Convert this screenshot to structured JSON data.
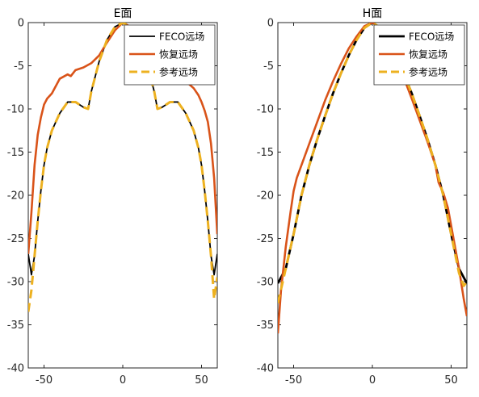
{
  "colors": {
    "feco": "#000000",
    "recovered": "#D95319",
    "reference": "#EDB120",
    "axis": "#262626"
  },
  "chart_data": [
    {
      "type": "line",
      "title": "E面",
      "xlabel": "",
      "ylabel": "",
      "xlim": [
        -60,
        60
      ],
      "ylim": [
        -40,
        0
      ],
      "xticks": [
        -50,
        0,
        50
      ],
      "yticks": [
        0,
        -5,
        -10,
        -15,
        -20,
        -25,
        -30,
        -35,
        -40
      ],
      "legend": {
        "placement": "top-right",
        "entries": [
          "FECO远场",
          "恢复远场",
          "参考远场"
        ]
      },
      "grid": false,
      "series": [
        {
          "name": "FECO远场",
          "color": "#000000",
          "style": "solid",
          "x": [
            -60,
            -58,
            -56,
            -54,
            -52,
            -50,
            -48,
            -45,
            -40,
            -35,
            -30,
            -25,
            -22,
            -20,
            -15,
            -10,
            -5,
            0,
            5,
            10,
            15,
            20,
            22,
            25,
            30,
            35,
            40,
            45,
            48,
            50,
            52,
            54,
            56,
            58,
            60
          ],
          "y": [
            -26.8,
            -29.2,
            -27,
            -23,
            -19.5,
            -16.5,
            -14.5,
            -12.5,
            -10.5,
            -9.2,
            -9.2,
            -9.8,
            -10,
            -8,
            -4.5,
            -2,
            -0.5,
            0,
            -0.5,
            -2,
            -4.5,
            -8,
            -10,
            -9.8,
            -9.2,
            -9.2,
            -10.5,
            -12.5,
            -14.5,
            -16.5,
            -19.5,
            -23,
            -27,
            -29.2,
            -26.8
          ]
        },
        {
          "name": "恢复远场",
          "color": "#D95319",
          "style": "solid",
          "x": [
            -60,
            -58,
            -56,
            -54,
            -52,
            -50,
            -48,
            -45,
            -40,
            -35,
            -33,
            -30,
            -25,
            -20,
            -15,
            -10,
            -5,
            0,
            5,
            10,
            15,
            20,
            25,
            30,
            35,
            40,
            45,
            48,
            50,
            52,
            54,
            56,
            58,
            60
          ],
          "y": [
            -26.8,
            -22,
            -16.5,
            -13,
            -11,
            -9.5,
            -8.8,
            -8.2,
            -6.5,
            -6,
            -6.2,
            -5.5,
            -5.2,
            -4.7,
            -3.8,
            -2.3,
            -0.9,
            0,
            -0.5,
            -1.6,
            -3.2,
            -4.7,
            -5.4,
            -5.9,
            -6.4,
            -6.8,
            -7.6,
            -8.4,
            -9.2,
            -10.2,
            -11.5,
            -14,
            -18,
            -24.5
          ]
        },
        {
          "name": "参考远场",
          "color": "#EDB120",
          "style": "dashed",
          "x": [
            -60,
            -58,
            -56,
            -54,
            -52,
            -50,
            -48,
            -45,
            -40,
            -35,
            -30,
            -25,
            -22,
            -20,
            -15,
            -10,
            -5,
            0,
            5,
            10,
            15,
            20,
            22,
            25,
            30,
            35,
            40,
            45,
            48,
            50,
            52,
            54,
            56,
            58,
            60
          ],
          "y": [
            -33.5,
            -31,
            -27,
            -23,
            -19.5,
            -16.5,
            -14.5,
            -12.5,
            -10.5,
            -9.2,
            -9.2,
            -9.8,
            -10,
            -8,
            -4.5,
            -2,
            -0.5,
            0,
            -0.5,
            -2,
            -4.5,
            -8,
            -10,
            -9.8,
            -9.2,
            -9.2,
            -10.5,
            -12.5,
            -14.5,
            -16.5,
            -19.5,
            -23,
            -27,
            -32,
            -29.5
          ]
        }
      ]
    },
    {
      "type": "line",
      "title": "H面",
      "xlabel": "",
      "ylabel": "",
      "xlim": [
        -60,
        60
      ],
      "ylim": [
        -40,
        0
      ],
      "xticks": [
        -50,
        0,
        50
      ],
      "yticks": [
        0,
        -5,
        -10,
        -15,
        -20,
        -25,
        -30,
        -35,
        -40
      ],
      "legend": {
        "placement": "top-right",
        "entries": [
          "FECO远场",
          "恢复远场",
          "参考远场"
        ]
      },
      "grid": false,
      "series": [
        {
          "name": "FECO远场",
          "color": "#000000",
          "style": "solid",
          "x": [
            -60,
            -55,
            -50,
            -45,
            -40,
            -35,
            -30,
            -25,
            -20,
            -15,
            -10,
            -5,
            0,
            5,
            10,
            15,
            20,
            25,
            30,
            35,
            40,
            45,
            50,
            55,
            60
          ],
          "y": [
            -30.2,
            -28.5,
            -24.5,
            -20,
            -16.5,
            -13.5,
            -10.8,
            -8.2,
            -5.9,
            -3.8,
            -2,
            -0.6,
            0,
            -0.6,
            -2,
            -3.8,
            -5.9,
            -8.2,
            -10.8,
            -13.5,
            -16.5,
            -20,
            -24.5,
            -28.5,
            -30.2
          ]
        },
        {
          "name": "恢复远场",
          "color": "#D95319",
          "style": "solid",
          "x": [
            -60,
            -58,
            -55,
            -52,
            -50,
            -48,
            -45,
            -40,
            -35,
            -30,
            -25,
            -20,
            -15,
            -10,
            -5,
            0,
            5,
            10,
            15,
            20,
            25,
            30,
            35,
            40,
            42,
            45,
            48,
            50,
            52,
            55,
            58,
            60
          ],
          "y": [
            -36,
            -31,
            -26,
            -22,
            -19.5,
            -18,
            -16.5,
            -14,
            -11.5,
            -9,
            -6.8,
            -4.8,
            -3,
            -1.6,
            -0.4,
            0,
            -0.6,
            -2.2,
            -4.2,
            -6.4,
            -8.8,
            -11.3,
            -13.8,
            -16.5,
            -18.5,
            -19.7,
            -21.5,
            -23.5,
            -25.5,
            -28.5,
            -32,
            -34
          ]
        },
        {
          "name": "参考远场",
          "color": "#EDB120",
          "style": "dashed",
          "x": [
            -60,
            -55,
            -50,
            -45,
            -40,
            -35,
            -30,
            -25,
            -20,
            -15,
            -10,
            -5,
            0,
            5,
            10,
            15,
            20,
            25,
            30,
            35,
            40,
            45,
            50,
            55,
            58,
            60
          ],
          "y": [
            -32.5,
            -28.5,
            -24.5,
            -20,
            -16.5,
            -13.5,
            -10.8,
            -8.2,
            -5.9,
            -3.8,
            -2,
            -0.6,
            0,
            -0.6,
            -2,
            -3.8,
            -5.9,
            -8.2,
            -10.8,
            -13.5,
            -16.5,
            -20,
            -24.5,
            -29,
            -30.5,
            -30
          ]
        }
      ]
    }
  ]
}
